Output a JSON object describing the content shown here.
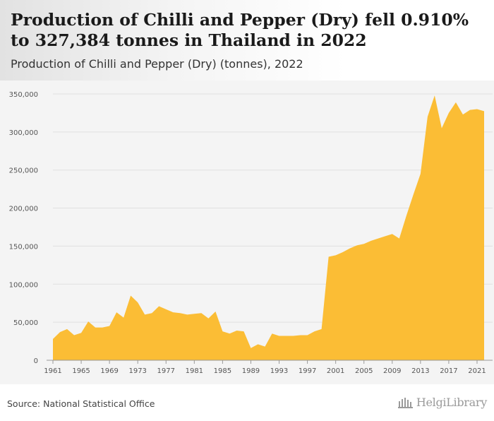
{
  "header": {
    "title": "Production of Chilli and Pepper (Dry) fell 0.910% to 327,384 tonnes in Thailand in 2022",
    "subtitle": "Production of Chilli and Pepper (Dry) (tonnes), 2022"
  },
  "footer": {
    "source": "Source: National Statistical Office",
    "logo_text": "HelgiLibrary"
  },
  "colors": {
    "area_fill": "#fbbd35",
    "grid": "#e0e0e0",
    "tick_label": "#555555"
  },
  "chart_data": {
    "type": "area",
    "title": "Production of Chilli and Pepper (Dry) fell 0.910% to 327,384 tonnes in Thailand in 2022",
    "subtitle": "Production of Chilli and Pepper (Dry) (tonnes), 2022",
    "xlabel": "",
    "ylabel": "",
    "ylim": [
      0,
      350000
    ],
    "yticks": [
      0,
      50000,
      100000,
      150000,
      200000,
      250000,
      300000,
      350000
    ],
    "ytick_labels": [
      "0",
      "50,000",
      "100,000",
      "150,000",
      "200,000",
      "250,000",
      "300,000",
      "350,000"
    ],
    "xticks": [
      1961,
      1965,
      1969,
      1973,
      1977,
      1981,
      1985,
      1989,
      1993,
      1997,
      2001,
      2005,
      2009,
      2013,
      2017,
      2021
    ],
    "grid": true,
    "legend": "none",
    "x": [
      1961,
      1962,
      1963,
      1964,
      1965,
      1966,
      1967,
      1968,
      1969,
      1970,
      1971,
      1972,
      1973,
      1974,
      1975,
      1976,
      1977,
      1978,
      1979,
      1980,
      1981,
      1982,
      1983,
      1984,
      1985,
      1986,
      1987,
      1988,
      1989,
      1990,
      1991,
      1992,
      1993,
      1994,
      1995,
      1996,
      1997,
      1998,
      1999,
      2000,
      2001,
      2002,
      2003,
      2004,
      2005,
      2006,
      2007,
      2008,
      2009,
      2010,
      2011,
      2012,
      2013,
      2014,
      2015,
      2016,
      2017,
      2018,
      2019,
      2020,
      2021,
      2022
    ],
    "series": [
      {
        "values": [
          28000,
          37000,
          41000,
          33000,
          36000,
          51000,
          43000,
          43000,
          45000,
          63000,
          56000,
          85000,
          76000,
          60000,
          62000,
          71000,
          67000,
          63000,
          62000,
          60000,
          61000,
          62000,
          55000,
          64000,
          38000,
          35000,
          39000,
          38000,
          16000,
          21000,
          18000,
          35000,
          32000,
          32000,
          32000,
          33000,
          33000,
          38000,
          41000,
          136000,
          138000,
          142000,
          147000,
          151000,
          153000,
          157000,
          160000,
          163000,
          166000,
          160000,
          190000,
          218000,
          245000,
          320000,
          348000,
          305000,
          325000,
          339000,
          323000,
          329000,
          330000,
          327384
        ]
      }
    ]
  }
}
